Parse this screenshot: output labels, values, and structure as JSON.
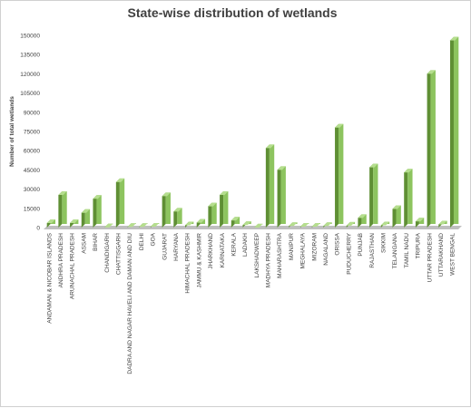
{
  "chart_data": {
    "type": "bar",
    "title": "State-wise distribution of wetlands",
    "xlabel": "",
    "ylabel": "Number of total wetlands",
    "ylim": [
      0,
      150000
    ],
    "yticks": [
      0,
      15000,
      30000,
      45000,
      60000,
      75000,
      90000,
      105000,
      120000,
      135000,
      150000
    ],
    "grid": false,
    "legend": "none",
    "bar_style": "3d",
    "colors": {
      "bar_front": "#8dc45f",
      "bar_side": "#5f8f34",
      "bar_top": "#b5de8e",
      "floor": "#bfbfbf"
    },
    "categories": [
      "ANDAMAN & NICOBAR ISLANDS",
      "ANDHRA PRADESH",
      "ARUNACHAL PRADESH",
      "ASSAM",
      "BIHAR",
      "CHANDIGARH",
      "CHATTISGARH",
      "DADRA AND NAGAR HAVELI AND DAMAN AND DIU",
      "DELHI",
      "GOA",
      "GUJARAT",
      "HARYANA",
      "HIMACHAL PRADESH",
      "JAMMU & KASHMIR",
      "JHARKHAND",
      "KARNATAKA",
      "KERALA",
      "LADAKH",
      "LAKSHADWEEP",
      "MADHYA PRADESH",
      "MAHARASHTRA",
      "MANIPUR",
      "MEGHALAYA",
      "MIZORAM",
      "NAGALAND",
      "ORISSA",
      "PUDUCHERRY",
      "PUNJAB",
      "RAJASTHAN",
      "SIKKIM",
      "TELANGANA",
      "TAMIL NADU",
      "TRIPURA",
      "UTTAR PRADESH",
      "UTTARAKHAND",
      "WEST BENGAL"
    ],
    "values": [
      3500,
      25500,
      3500,
      11500,
      22500,
      200,
      35500,
      500,
      500,
      700,
      24500,
      12500,
      1800,
      3800,
      16500,
      25500,
      5500,
      2000,
      100,
      62000,
      45000,
      1200,
      700,
      700,
      1200,
      78000,
      1500,
      7500,
      47000,
      1800,
      14500,
      43000,
      4800,
      120000,
      2500,
      146000
    ]
  }
}
